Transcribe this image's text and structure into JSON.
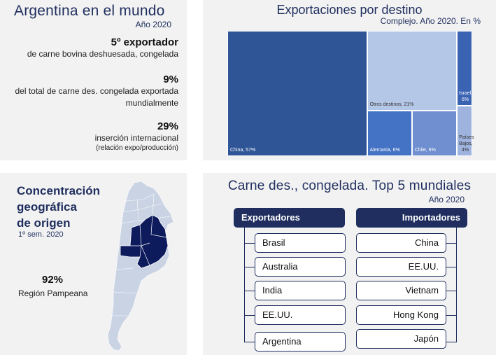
{
  "panel_world": {
    "title": "Argentina en el mundo",
    "year": "Año 2020",
    "stats": [
      {
        "big": "5º exportador",
        "desc": [
          "de carne bovina deshuesada, congelada"
        ]
      },
      {
        "big": "9%",
        "desc": [
          "del total de carne des. congelada exportada",
          "mundialmente"
        ]
      },
      {
        "big": "29%",
        "desc": [
          "inserción internacional"
        ],
        "small": "(relación expo/producción)"
      }
    ]
  },
  "panel_destinations": {
    "title": "Exportaciones por destino",
    "subtitle": "Complejo. Año 2020. En %"
  },
  "chart_data": {
    "type": "treemap",
    "title": "Exportaciones por destino",
    "subtitle": "Complejo. Año 2020. En %",
    "items": [
      {
        "label": "China, 57%",
        "name": "China",
        "value": 57,
        "color": "#2f5597"
      },
      {
        "label": "Otros destinos, 21%",
        "name": "Otros destinos",
        "value": 21,
        "color": "#b4c7e7"
      },
      {
        "label": "Alemania, 6%",
        "name": "Alemania",
        "value": 6,
        "color": "#4472c4"
      },
      {
        "label": "Chile, 6%",
        "name": "Chile",
        "value": 6,
        "color": "#6f8fd1"
      },
      {
        "label": "Israel,\n6%",
        "name": "Israel",
        "value": 6,
        "color": "#3b63b3"
      },
      {
        "label": "Países\nBajos,\n4%",
        "name": "Países Bajos",
        "value": 4,
        "color": "#9fb3df"
      }
    ]
  },
  "panel_origin": {
    "title_lines": [
      "Concentración",
      "geográfica",
      "de origen"
    ],
    "period": "1º sem. 2020",
    "big": "92%",
    "desc": "Región Pampeana",
    "colors": {
      "highlight": "#0d1a5c",
      "map": "#c9d3e3"
    }
  },
  "panel_top5": {
    "title": "Carne des., congelada. Top 5 mundiales",
    "year": "Año 2020",
    "exporters_label": "Exportadores",
    "importers_label": "Importadores",
    "exporters": [
      "Brasil",
      "Australia",
      "India",
      "EE.UU.",
      "Argentina"
    ],
    "importers": [
      "China",
      "EE.UU.",
      "Vietnam",
      "Hong Kong",
      "Japón"
    ]
  }
}
